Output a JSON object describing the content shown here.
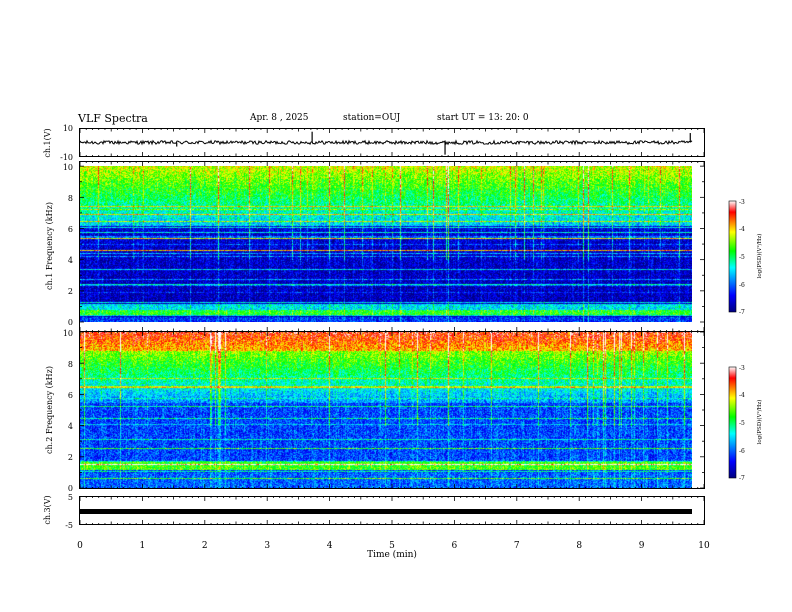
{
  "header": {
    "title": "VLF Spectra",
    "date": "Apr. 8 , 2025",
    "station": "station=OUJ",
    "start": "start  UT =   13: 20: 0"
  },
  "chart_data": [
    {
      "type": "line",
      "panel": "ch1-waveform",
      "ylabel": "ch.1(V)",
      "yticks": [
        "10",
        "-10"
      ],
      "ylim": [
        -10,
        10
      ],
      "xlim": [
        0,
        10
      ],
      "baseline": 0,
      "spikes": [
        {
          "x": 3.72,
          "y": 8
        },
        {
          "x": 5.85,
          "y": -9
        },
        {
          "x": 9.78,
          "y": 7
        },
        {
          "x": 1.55,
          "y": -3
        }
      ]
    },
    {
      "type": "heatmap",
      "panel": "ch1-spectrogram",
      "ylabel": "ch.1 Frequency (kHz)",
      "ylim": [
        0,
        10
      ],
      "yticks": [
        "0",
        "2",
        "4",
        "6",
        "8",
        "10"
      ],
      "xlim": [
        0,
        10
      ]
    },
    {
      "type": "heatmap",
      "panel": "ch2-spectrogram",
      "ylabel": "ch.2 Frequency (kHz)",
      "ylim": [
        0,
        10
      ],
      "yticks": [
        "0",
        "2",
        "4",
        "6",
        "8",
        "10"
      ],
      "xlim": [
        0,
        10
      ]
    },
    {
      "type": "line",
      "panel": "ch3-waveform",
      "ylabel": "ch.3(V)",
      "yticks": [
        "5",
        "-5"
      ],
      "ylim": [
        -5,
        5
      ],
      "xlim": [
        0,
        10
      ],
      "baseline": 0
    }
  ],
  "xaxis": {
    "label": "Time  (min)",
    "ticks": [
      "0",
      "1",
      "2",
      "3",
      "4",
      "5",
      "6",
      "7",
      "8",
      "9",
      "10"
    ]
  },
  "colorbar": {
    "label": "log(PSD)(V²/Hz)",
    "ticks": [
      "-3",
      "-4",
      "-5",
      "-6",
      "-7"
    ],
    "range": [
      -7,
      -3
    ],
    "colors": [
      "#00007f",
      "#0000ff",
      "#00ffff",
      "#00ff00",
      "#ffff00",
      "#ff0000",
      "#ffffff"
    ]
  }
}
